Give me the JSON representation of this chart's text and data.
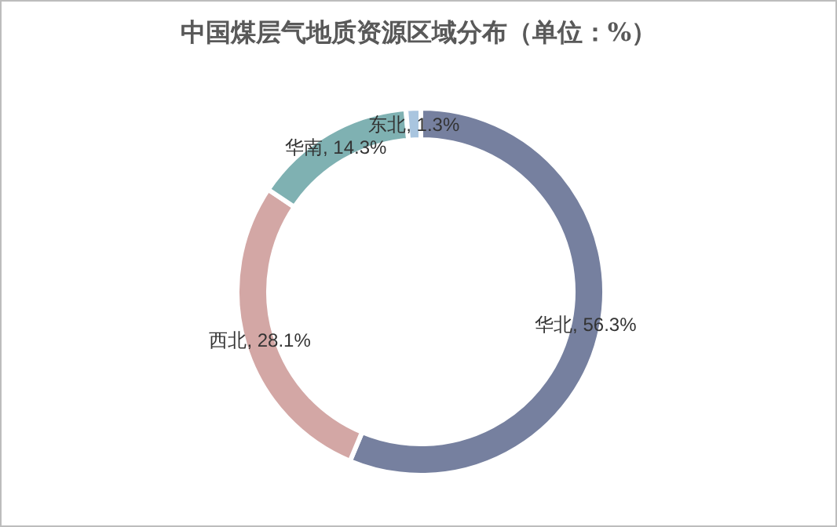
{
  "chart_data": {
    "type": "donut",
    "title": "中国煤层气地质资源区域分布（单位：%）",
    "categories": [
      "华北",
      "西北",
      "华南",
      "东北"
    ],
    "values": [
      56.3,
      28.1,
      14.3,
      1.3
    ],
    "colors": [
      "#76809f",
      "#d3a7a5",
      "#7fb1b2",
      "#a9c5df"
    ],
    "value_labels": [
      ", 56.3%",
      ", 28.1%",
      ", 14.3%",
      ", 1.3%"
    ],
    "legend": false
  }
}
